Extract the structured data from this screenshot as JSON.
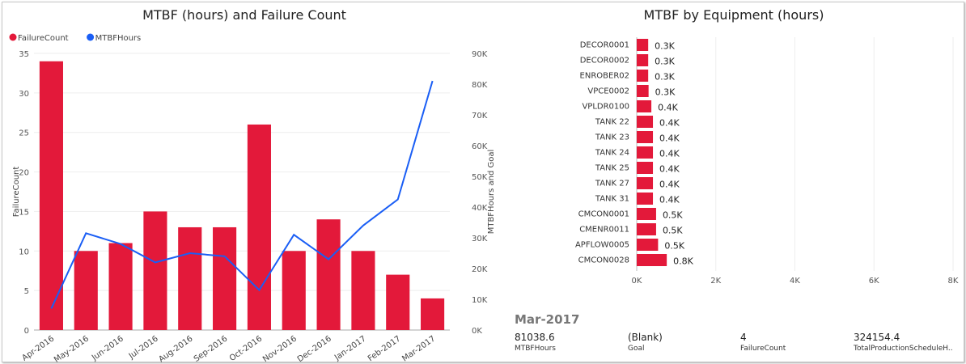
{
  "chart_data": [
    {
      "type": "bar+line",
      "title": "MTBF (hours) and Failure Count",
      "categories": [
        "Apr-2016",
        "May-2016",
        "Jun-2016",
        "Jul-2016",
        "Aug-2016",
        "Sep-2016",
        "Oct-2016",
        "Nov-2016",
        "Dec-2016",
        "Jan-2017",
        "Feb-2017",
        "Mar-2017"
      ],
      "series": [
        {
          "name": "FailureCount",
          "type": "bar",
          "axis": "left",
          "color": "#E3193A",
          "values": [
            34,
            10,
            11,
            15,
            13,
            13,
            26,
            10,
            14,
            10,
            7,
            4
          ]
        },
        {
          "name": "MTBFHours",
          "type": "line",
          "axis": "right",
          "color": "#1A5EF5",
          "values": [
            7000,
            31500,
            28000,
            22000,
            25000,
            24000,
            13000,
            31000,
            23000,
            34000,
            42500,
            81038.6
          ]
        }
      ],
      "ylabel": "FailureCount",
      "y2label": "MTBFHours and Goal",
      "ylim": [
        0,
        35
      ],
      "yticks": [
        "0",
        "5",
        "10",
        "15",
        "20",
        "25",
        "30",
        "35"
      ],
      "y2lim": [
        0,
        90000
      ],
      "y2ticks": [
        "0K",
        "10K",
        "20K",
        "30K",
        "40K",
        "50K",
        "60K",
        "70K",
        "80K",
        "90K"
      ],
      "legend": "top-left",
      "grid": true
    },
    {
      "type": "bar",
      "orientation": "horizontal",
      "title": "MTBF by Equipment (hours)",
      "categories": [
        "DECOR0001",
        "DECOR0002",
        "ENROBER02",
        "VPCE0002",
        "VPLDR0100",
        "TANK 22",
        "TANK 23",
        "TANK 24",
        "TANK 25",
        "TANK 27",
        "TANK 31",
        "CMCON0001",
        "CMENR0011",
        "APFLOW0005",
        "CMCON0028"
      ],
      "values": [
        290,
        290,
        290,
        300,
        370,
        410,
        410,
        410,
        410,
        410,
        410,
        490,
        490,
        540,
        760
      ],
      "data_labels": [
        "0.3K",
        "0.3K",
        "0.3K",
        "0.3K",
        "0.4K",
        "0.4K",
        "0.4K",
        "0.4K",
        "0.4K",
        "0.4K",
        "0.4K",
        "0.5K",
        "0.5K",
        "0.5K",
        "0.8K"
      ],
      "color": "#E3193A",
      "xlim": [
        0,
        8000
      ],
      "xticks": [
        "0K",
        "2K",
        "4K",
        "6K",
        "8K"
      ],
      "grid": true
    }
  ],
  "tooltip_card": {
    "heading": "Mar-2017",
    "items": [
      {
        "value": "81038.6",
        "label": "MTBFHours"
      },
      {
        "value": "(Blank)",
        "label": "Goal"
      },
      {
        "value": "4",
        "label": "FailureCount"
      },
      {
        "value": "324154.4",
        "label": "TotalProductionScheduleH.."
      }
    ]
  }
}
